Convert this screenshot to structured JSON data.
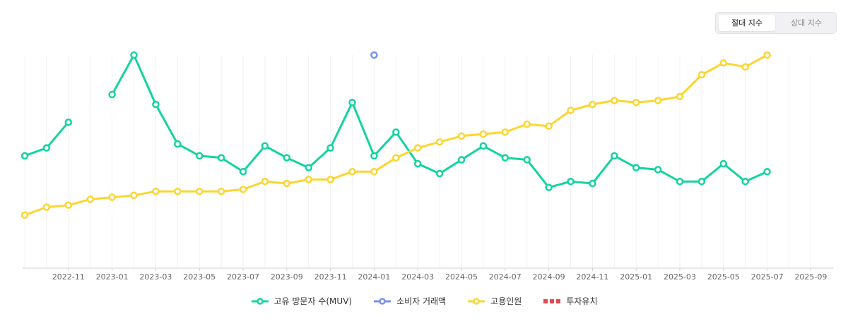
{
  "controls": {
    "absolute_label": "절대 지수",
    "relative_label": "상대 지수",
    "selected": "absolute"
  },
  "chart_data": {
    "type": "line",
    "title": "",
    "xlabel": "",
    "ylabel": "",
    "y_axis_visible": false,
    "ylim": [
      0,
      100
    ],
    "grid": "vertical",
    "legend_position": "bottom",
    "months": [
      "2022-09",
      "2022-10",
      "2022-11",
      "2022-12",
      "2023-01",
      "2023-02",
      "2023-03",
      "2023-04",
      "2023-05",
      "2023-06",
      "2023-07",
      "2023-08",
      "2023-09",
      "2023-10",
      "2023-11",
      "2023-12",
      "2024-01",
      "2024-02",
      "2024-03",
      "2024-04",
      "2024-05",
      "2024-06",
      "2024-07",
      "2024-08",
      "2024-09",
      "2024-10",
      "2024-11",
      "2024-12",
      "2025-01",
      "2025-02",
      "2025-03",
      "2025-04",
      "2025-05",
      "2025-06",
      "2025-07",
      "2025-08",
      "2025-09"
    ],
    "tick_labels": [
      "2022-11",
      "2023-01",
      "2023-03",
      "2023-05",
      "2023-07",
      "2023-09",
      "2023-11",
      "2024-01",
      "2024-03",
      "2024-05",
      "2024-07",
      "2024-09",
      "2024-11",
      "2025-01",
      "2025-03",
      "2025-05",
      "2025-07",
      "2025-09"
    ],
    "series": [
      {
        "name": "고유 방문자 수(MUV)",
        "color": "#13d4a0",
        "style": "line",
        "values": [
          49,
          53,
          66,
          null,
          80,
          100,
          75,
          55,
          49,
          48,
          41,
          54,
          48,
          43,
          53,
          76,
          49,
          61,
          45,
          40,
          47,
          54,
          48,
          47,
          33,
          36,
          35,
          49,
          43,
          42,
          36,
          36,
          45,
          36,
          41,
          null,
          null
        ]
      },
      {
        "name": "소비자 거래액",
        "color": "#7b8ff0",
        "style": "line",
        "values": [
          null,
          null,
          null,
          null,
          null,
          null,
          null,
          null,
          null,
          null,
          null,
          null,
          null,
          null,
          null,
          null,
          100,
          null,
          null,
          null,
          null,
          null,
          null,
          null,
          null,
          null,
          null,
          null,
          null,
          null,
          null,
          null,
          null,
          null,
          null,
          null,
          null
        ]
      },
      {
        "name": "고용인원",
        "color": "#fcd531",
        "style": "line",
        "values": [
          19,
          23,
          24,
          27,
          28,
          29,
          31,
          31,
          31,
          31,
          32,
          36,
          35,
          37,
          37,
          41,
          41,
          48,
          53,
          56,
          59,
          60,
          61,
          65,
          64,
          72,
          75,
          77,
          76,
          77,
          79,
          90,
          96,
          94,
          100,
          null,
          null
        ]
      },
      {
        "name": "투자유치",
        "color": "#e5484d",
        "style": "dashed",
        "values": []
      }
    ]
  }
}
